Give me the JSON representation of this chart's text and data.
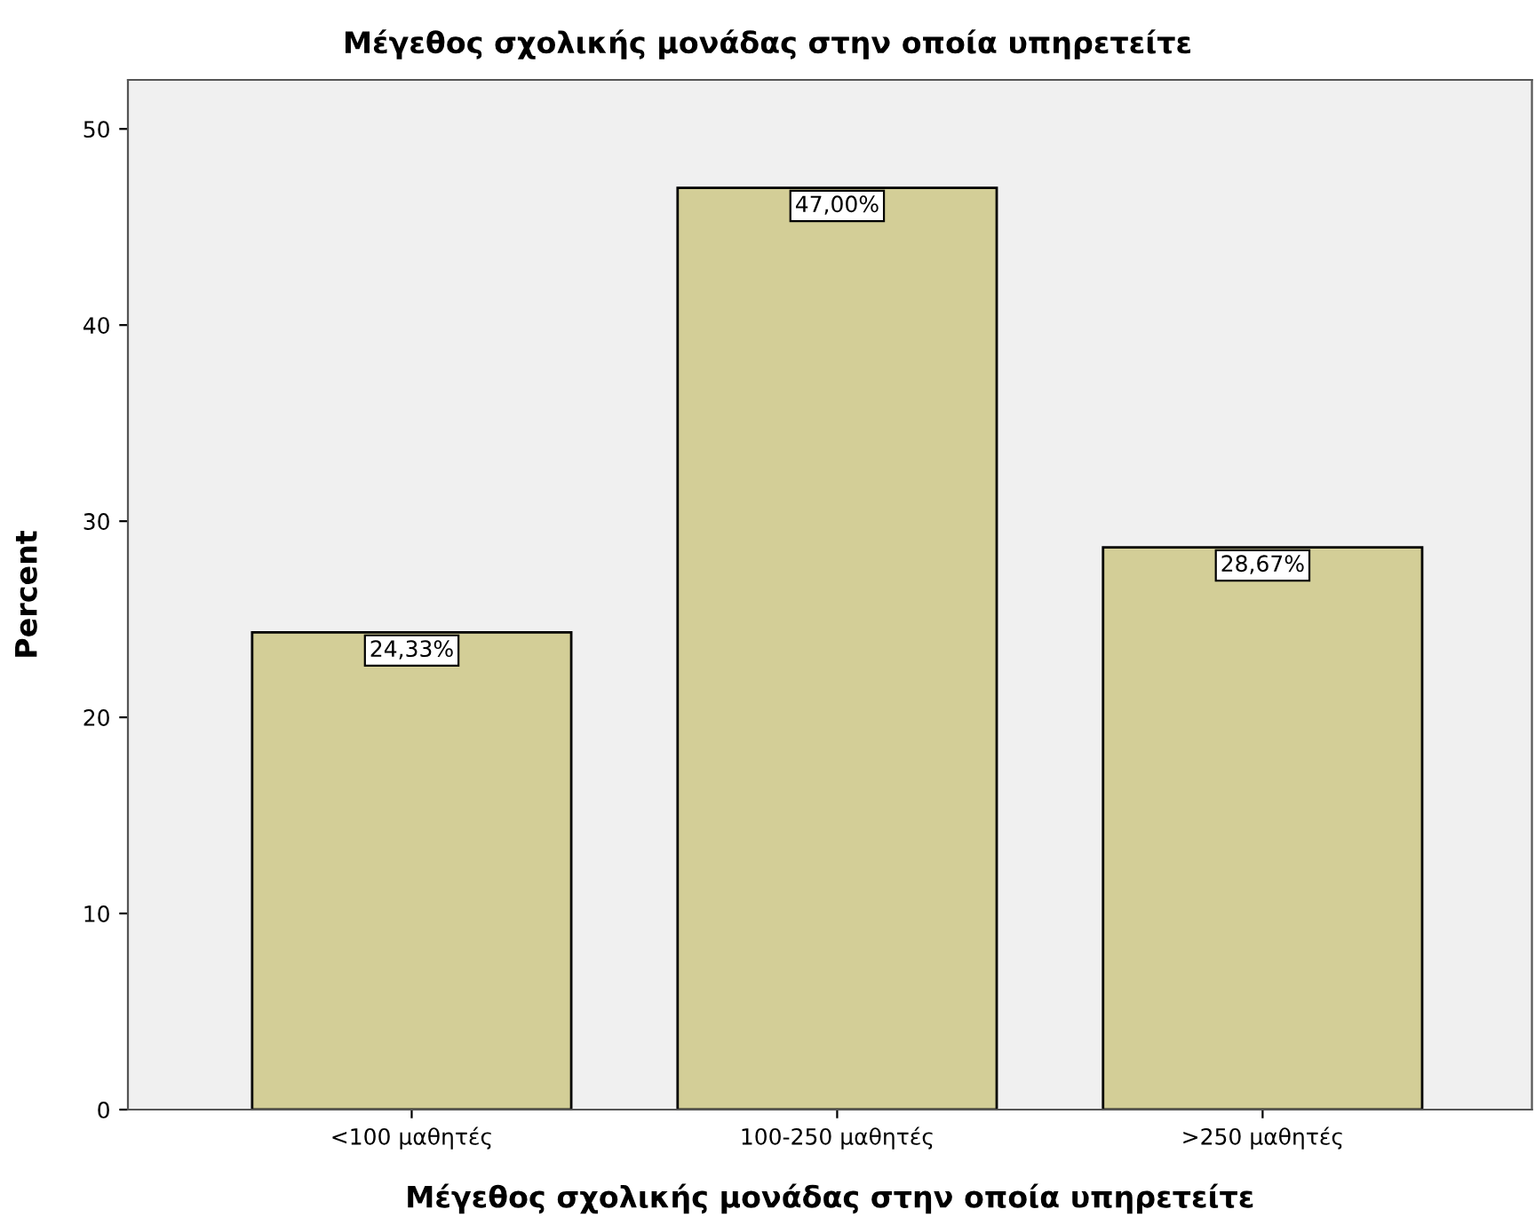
{
  "chart_data": {
    "type": "bar",
    "title": "Μέγεθος σχολικής μονάδας στην οποία υπηρετείτε",
    "xlabel": "Μέγεθος σχολικής μονάδας στην οποία υπηρετείτε",
    "ylabel": "Percent",
    "categories": [
      "<100 μαθητές",
      "100-250 μαθητές",
      ">250 μαθητές"
    ],
    "values": [
      24.33,
      47.0,
      28.67
    ],
    "value_labels": [
      "24,33%",
      "47,00%",
      "28,67%"
    ],
    "color": "#d3ce97",
    "ylim": [
      0,
      52.5
    ],
    "yticks": [
      0,
      10,
      20,
      30,
      40,
      50
    ],
    "grid": false,
    "legend": false
  }
}
